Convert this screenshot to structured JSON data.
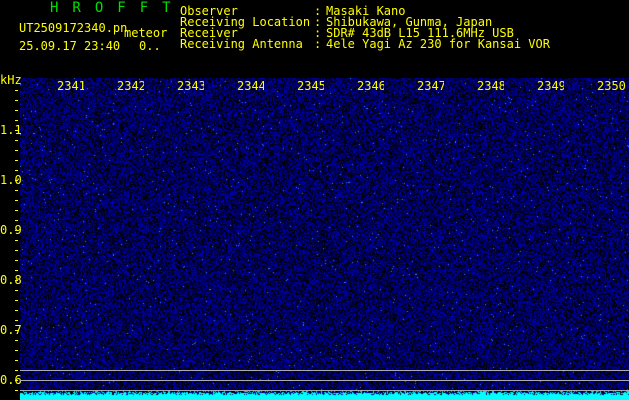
{
  "header": {
    "logo": "HROFFT",
    "filename": "UT2509172340.pn",
    "type": "meteor",
    "datetime": "25.09.17 23:40",
    "count": "0.."
  },
  "info": [
    {
      "label": "Observer",
      "value": "Masaki Kano"
    },
    {
      "label": "Receiving Location",
      "value": "Shibukawa, Gunma, Japan"
    },
    {
      "label": "Receiver",
      "value": "SDR# 43dB L15 111.6MHz USB"
    },
    {
      "label": "Receiving Antenna",
      "value": "4ele Yagi Az 230 for Kansai VOR"
    }
  ],
  "plot": {
    "y_unit": "kHz",
    "x_ticks": [
      "2341",
      "2342",
      "2343",
      "2344",
      "2345",
      "2346",
      "2347",
      "2348",
      "2349",
      "2350"
    ],
    "y_ticks": [
      "1.1",
      "1.0",
      "0.9",
      "0.8",
      "0.7",
      "0.6"
    ],
    "colors": {
      "noise": "#0000ff",
      "bright": "#3399ff",
      "baseline": "#00ffff"
    }
  }
}
